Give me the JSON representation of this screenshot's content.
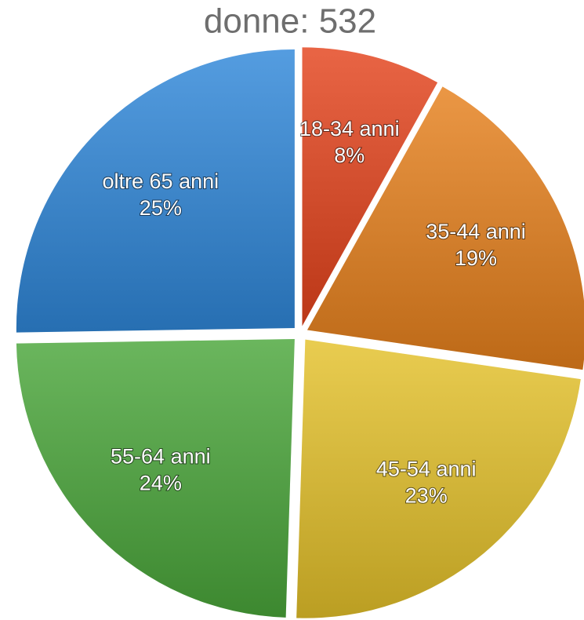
{
  "chart_data": {
    "type": "pie",
    "title": "donne: 532",
    "categories": [
      "18-34 anni",
      "35-44 anni",
      "45-54 anni",
      "55-64 anni",
      "oltre 65 anni"
    ],
    "values": [
      8,
      19,
      23,
      24,
      25
    ],
    "value_labels": [
      "8%",
      "19%",
      "23%",
      "24%",
      "25%"
    ],
    "colors": [
      "#e4431c",
      "#e6801c",
      "#e4c12a",
      "#4aa63a",
      "#2f87d9"
    ]
  }
}
